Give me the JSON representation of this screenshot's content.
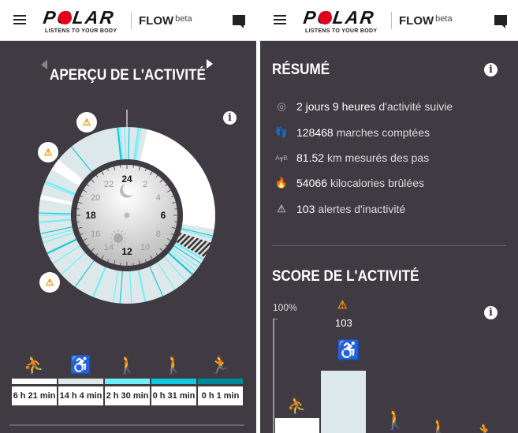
{
  "header": {
    "brand": "POLAR",
    "tagline": "LISTENS TO YOUR BODY",
    "product": "FLOW",
    "product_suffix": "beta"
  },
  "overview": {
    "title": "APERÇU DE L'ACTIVITÉ",
    "dial_hours": [
      "24",
      "2",
      "4",
      "6",
      "8",
      "10",
      "12",
      "14",
      "16",
      "18",
      "20",
      "22"
    ],
    "levels": [
      {
        "icon": "lying-icon",
        "duration": "6 h 21 min",
        "color": "#ffffff"
      },
      {
        "icon": "sitting-icon",
        "duration": "14 h 4 min",
        "color": "#dde8ea"
      },
      {
        "icon": "standing-icon",
        "duration": "2 h 30 min",
        "color": "#6ff0f7"
      },
      {
        "icon": "walking-icon",
        "duration": "0 h 31 min",
        "color": "#13c8dc"
      },
      {
        "icon": "running-icon",
        "duration": "0 h 1 min",
        "color": "#00899a"
      }
    ]
  },
  "summary": {
    "title": "RÉSUMÉ",
    "rows": [
      {
        "icon": "activity-time-icon",
        "value": "2 jours 9 heures",
        "label": "d'activité suivie"
      },
      {
        "icon": "footsteps-icon",
        "value": "128468",
        "label": "marches comptées"
      },
      {
        "icon": "distance-icon",
        "value": "81.52",
        "label": "km mesurés des pas"
      },
      {
        "icon": "flame-icon",
        "value": "54066",
        "label": "kilocalories brûlées"
      },
      {
        "icon": "inactivity-alert-icon",
        "value": "103",
        "label": "alertes d'inactivité"
      }
    ]
  },
  "score": {
    "title": "SCORE DE L'ACTIVITÉ",
    "axis_label": "100%",
    "alerts": "103"
  },
  "colors": {
    "background": "#403b43",
    "alert": "#f39200",
    "cyan": "#13c8dc"
  }
}
